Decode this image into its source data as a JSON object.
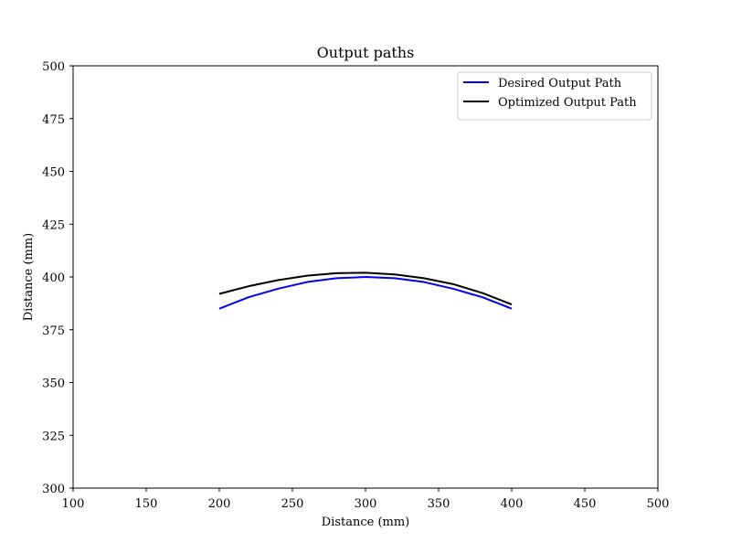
{
  "chart_data": {
    "type": "line",
    "title": "Output paths",
    "xlabel": "Distance (mm)",
    "ylabel": "Distance (mm)",
    "xlim": [
      100,
      500
    ],
    "ylim": [
      300,
      500
    ],
    "xticks": [
      100,
      150,
      200,
      250,
      300,
      350,
      400,
      450,
      500
    ],
    "yticks": [
      300,
      325,
      350,
      375,
      400,
      425,
      450,
      475,
      500
    ],
    "grid": false,
    "legend_position": "top-right",
    "series": [
      {
        "name": "Desired Output Path",
        "color": "#0000ff",
        "x": [
          200,
          220,
          240,
          260,
          280,
          300,
          320,
          340,
          360,
          380,
          400
        ],
        "y": [
          385,
          390.4,
          394.4,
          397.6,
          399.4,
          400,
          399.4,
          397.6,
          394.4,
          390.4,
          385
        ]
      },
      {
        "name": "Optimized Output Path",
        "color": "#000000",
        "x": [
          200,
          220,
          240,
          260,
          280,
          300,
          320,
          340,
          360,
          380,
          400
        ],
        "y": [
          392,
          395.6,
          398.5,
          400.6,
          401.8,
          402,
          401.2,
          399.4,
          396.6,
          392.4,
          387
        ]
      }
    ]
  }
}
